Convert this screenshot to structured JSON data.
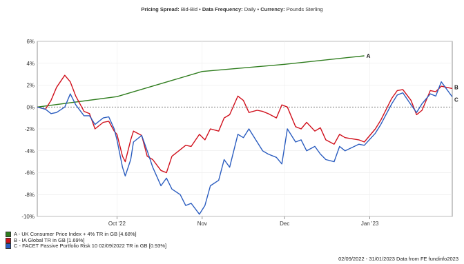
{
  "header": {
    "label1": "Pricing Spread:",
    "value1": "Bid-Bid",
    "sep1": " • ",
    "label2": "Data Frequency:",
    "value2": "Daily",
    "sep2": " • ",
    "label3": "Currency:",
    "value3": "Pounds Sterling"
  },
  "legend": [
    {
      "name": "A - UK Consumer Price Index + 4% TR in GB [4.68%]",
      "color": "#2f7d1e"
    },
    {
      "name": "B - IA Global TR in GB [1.69%]",
      "color": "#d0101c"
    },
    {
      "name": "C - FACET Passive Portfolio Risk 10 02/09/2022 TR in GB [0.93%]",
      "color": "#2a5cbf"
    }
  ],
  "footer": "02/09/2022 - 31/01/2023 Data from FE fundinfo2023",
  "chart_data": {
    "type": "line",
    "x_range": [
      "2022-09-02",
      "2023-01-31"
    ],
    "xticks": [
      {
        "date": "2022-10-01",
        "label": "Oct '22"
      },
      {
        "date": "2022-11-01",
        "label": "Nov"
      },
      {
        "date": "2022-12-01",
        "label": "Dec"
      },
      {
        "date": "2023-01-01",
        "label": "Jan '23"
      }
    ],
    "ylim": [
      -10,
      6
    ],
    "yticks": [
      6,
      4,
      2,
      0,
      -2,
      -4,
      -6,
      -8,
      -10
    ],
    "ytick_labels": [
      "6%",
      "4%",
      "2%",
      "0%",
      "-2%",
      "-4%",
      "-6%",
      "-8%",
      "-10%"
    ],
    "zero_line": true,
    "series": [
      {
        "name": "A - UK Consumer Price Index + 4% TR in GB [4.68%]",
        "end_label": "A",
        "color": "#2f7d1e",
        "points": [
          [
            "2022-09-02",
            0.0
          ],
          [
            "2022-10-01",
            0.95
          ],
          [
            "2022-11-01",
            3.25
          ],
          [
            "2022-12-01",
            3.9
          ],
          [
            "2022-12-30",
            4.68
          ]
        ]
      },
      {
        "name": "B - IA Global TR in GB [1.69%]",
        "end_label": "B",
        "color": "#d0101c",
        "points": [
          [
            "2022-09-02",
            0.0
          ],
          [
            "2022-09-05",
            -0.2
          ],
          [
            "2022-09-07",
            0.6
          ],
          [
            "2022-09-09",
            1.8
          ],
          [
            "2022-09-12",
            2.9
          ],
          [
            "2022-09-14",
            2.3
          ],
          [
            "2022-09-16",
            1.0
          ],
          [
            "2022-09-19",
            -0.4
          ],
          [
            "2022-09-21",
            -0.6
          ],
          [
            "2022-09-23",
            -2.0
          ],
          [
            "2022-09-26",
            -1.4
          ],
          [
            "2022-09-28",
            -1.3
          ],
          [
            "2022-09-30",
            -2.2
          ],
          [
            "2022-10-01",
            -2.5
          ],
          [
            "2022-10-03",
            -4.5
          ],
          [
            "2022-10-04",
            -5.0
          ],
          [
            "2022-10-06",
            -3.0
          ],
          [
            "2022-10-07",
            -2.2
          ],
          [
            "2022-10-10",
            -2.6
          ],
          [
            "2022-10-12",
            -4.5
          ],
          [
            "2022-10-14",
            -4.8
          ],
          [
            "2022-10-17",
            -5.8
          ],
          [
            "2022-10-19",
            -6.0
          ],
          [
            "2022-10-21",
            -4.5
          ],
          [
            "2022-10-24",
            -3.9
          ],
          [
            "2022-10-26",
            -3.5
          ],
          [
            "2022-10-28",
            -3.6
          ],
          [
            "2022-10-31",
            -2.5
          ],
          [
            "2022-11-02",
            -3.0
          ],
          [
            "2022-11-04",
            -2.0
          ],
          [
            "2022-11-07",
            -2.2
          ],
          [
            "2022-11-09",
            -1.0
          ],
          [
            "2022-11-11",
            -0.7
          ],
          [
            "2022-11-14",
            1.0
          ],
          [
            "2022-11-16",
            0.6
          ],
          [
            "2022-11-18",
            -0.5
          ],
          [
            "2022-11-21",
            -0.3
          ],
          [
            "2022-11-23",
            -0.4
          ],
          [
            "2022-11-25",
            -0.6
          ],
          [
            "2022-11-28",
            -1.0
          ],
          [
            "2022-11-30",
            0.2
          ],
          [
            "2022-12-02",
            0.0
          ],
          [
            "2022-12-05",
            -1.8
          ],
          [
            "2022-12-07",
            -2.0
          ],
          [
            "2022-12-09",
            -1.4
          ],
          [
            "2022-12-12",
            -2.2
          ],
          [
            "2022-12-14",
            -1.9
          ],
          [
            "2022-12-16",
            -3.0
          ],
          [
            "2022-12-19",
            -3.4
          ],
          [
            "2022-12-21",
            -2.5
          ],
          [
            "2022-12-23",
            -2.8
          ],
          [
            "2022-12-28",
            -3.0
          ],
          [
            "2022-12-30",
            -3.2
          ],
          [
            "2023-01-03",
            -2.0
          ],
          [
            "2023-01-05",
            -1.2
          ],
          [
            "2023-01-09",
            0.8
          ],
          [
            "2023-01-11",
            1.5
          ],
          [
            "2023-01-13",
            1.6
          ],
          [
            "2023-01-16",
            0.6
          ],
          [
            "2023-01-18",
            -0.7
          ],
          [
            "2023-01-20",
            -0.3
          ],
          [
            "2023-01-23",
            1.5
          ],
          [
            "2023-01-25",
            1.4
          ],
          [
            "2023-01-27",
            1.9
          ],
          [
            "2023-01-31",
            1.69
          ]
        ]
      },
      {
        "name": "C - FACET Passive Portfolio Risk 10 02/09/2022 TR in GB [0.93%]",
        "end_label": "C",
        "color": "#2a5cbf",
        "points": [
          [
            "2022-09-02",
            0.0
          ],
          [
            "2022-09-05",
            -0.2
          ],
          [
            "2022-09-07",
            -0.6
          ],
          [
            "2022-09-09",
            -0.5
          ],
          [
            "2022-09-12",
            0.0
          ],
          [
            "2022-09-14",
            1.2
          ],
          [
            "2022-09-16",
            0.2
          ],
          [
            "2022-09-19",
            -0.8
          ],
          [
            "2022-09-21",
            -0.8
          ],
          [
            "2022-09-23",
            -1.6
          ],
          [
            "2022-09-26",
            -1.0
          ],
          [
            "2022-09-28",
            -0.9
          ],
          [
            "2022-09-30",
            -2.0
          ],
          [
            "2022-10-01",
            -3.0
          ],
          [
            "2022-10-03",
            -5.5
          ],
          [
            "2022-10-04",
            -6.3
          ],
          [
            "2022-10-06",
            -4.8
          ],
          [
            "2022-10-07",
            -3.2
          ],
          [
            "2022-10-10",
            -2.6
          ],
          [
            "2022-10-12",
            -4.0
          ],
          [
            "2022-10-14",
            -5.5
          ],
          [
            "2022-10-17",
            -7.2
          ],
          [
            "2022-10-19",
            -6.5
          ],
          [
            "2022-10-21",
            -7.5
          ],
          [
            "2022-10-24",
            -8.0
          ],
          [
            "2022-10-26",
            -9.0
          ],
          [
            "2022-10-28",
            -8.8
          ],
          [
            "2022-10-31",
            -9.8
          ],
          [
            "2022-11-02",
            -9.0
          ],
          [
            "2022-11-04",
            -7.2
          ],
          [
            "2022-11-07",
            -6.7
          ],
          [
            "2022-11-09",
            -4.8
          ],
          [
            "2022-11-11",
            -5.5
          ],
          [
            "2022-11-14",
            -2.5
          ],
          [
            "2022-11-16",
            -2.8
          ],
          [
            "2022-11-18",
            -2.0
          ],
          [
            "2022-11-21",
            -3.2
          ],
          [
            "2022-11-23",
            -4.0
          ],
          [
            "2022-11-25",
            -4.3
          ],
          [
            "2022-11-28",
            -4.6
          ],
          [
            "2022-11-30",
            -5.2
          ],
          [
            "2022-12-02",
            -2.0
          ],
          [
            "2022-12-05",
            -3.2
          ],
          [
            "2022-12-07",
            -3.0
          ],
          [
            "2022-12-09",
            -4.0
          ],
          [
            "2022-12-12",
            -3.6
          ],
          [
            "2022-12-14",
            -4.3
          ],
          [
            "2022-12-16",
            -4.8
          ],
          [
            "2022-12-19",
            -5.0
          ],
          [
            "2022-12-21",
            -3.6
          ],
          [
            "2022-12-23",
            -4.0
          ],
          [
            "2022-12-28",
            -3.4
          ],
          [
            "2022-12-30",
            -3.5
          ],
          [
            "2023-01-03",
            -2.4
          ],
          [
            "2023-01-05",
            -1.6
          ],
          [
            "2023-01-09",
            0.3
          ],
          [
            "2023-01-11",
            1.1
          ],
          [
            "2023-01-13",
            1.3
          ],
          [
            "2023-01-16",
            0.2
          ],
          [
            "2023-01-18",
            -0.5
          ],
          [
            "2023-01-20",
            0.3
          ],
          [
            "2023-01-23",
            1.2
          ],
          [
            "2023-01-25",
            1.0
          ],
          [
            "2023-01-27",
            2.3
          ],
          [
            "2023-01-31",
            0.93
          ]
        ]
      }
    ]
  }
}
